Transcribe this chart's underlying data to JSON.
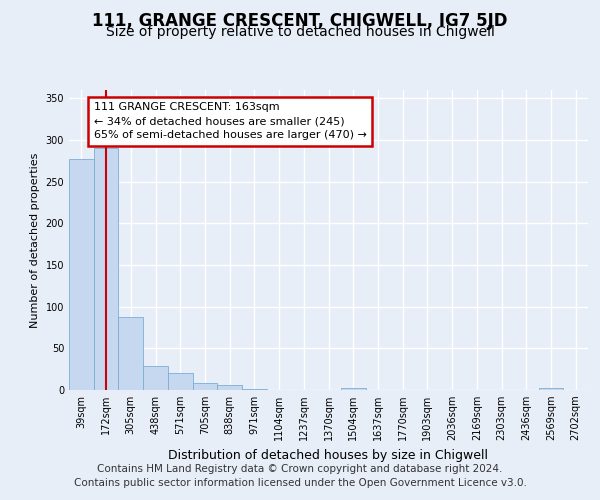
{
  "title": "111, GRANGE CRESCENT, CHIGWELL, IG7 5JD",
  "subtitle": "Size of property relative to detached houses in Chigwell",
  "xlabel": "Distribution of detached houses by size in Chigwell",
  "ylabel": "Number of detached properties",
  "categories": [
    "39sqm",
    "172sqm",
    "305sqm",
    "438sqm",
    "571sqm",
    "705sqm",
    "838sqm",
    "971sqm",
    "1104sqm",
    "1237sqm",
    "1370sqm",
    "1504sqm",
    "1637sqm",
    "1770sqm",
    "1903sqm",
    "2036sqm",
    "2169sqm",
    "2303sqm",
    "2436sqm",
    "2569sqm",
    "2702sqm"
  ],
  "values": [
    277,
    291,
    88,
    29,
    20,
    9,
    6,
    1,
    0,
    0,
    0,
    3,
    0,
    0,
    0,
    0,
    0,
    0,
    0,
    3,
    0
  ],
  "bar_color": "#c5d8ef",
  "bar_edgecolor": "#7aaed4",
  "property_line_bin": 1,
  "property_line_color": "#cc0000",
  "annotation_line1": "111 GRANGE CRESCENT: 163sqm",
  "annotation_line2": "← 34% of detached houses are smaller (245)",
  "annotation_line3": "65% of semi-detached houses are larger (470) →",
  "annotation_box_edgecolor": "#cc0000",
  "ylim": [
    0,
    360
  ],
  "yticks": [
    0,
    50,
    100,
    150,
    200,
    250,
    300,
    350
  ],
  "background_color": "#e8eef8",
  "grid_color": "#ffffff",
  "title_fontsize": 12,
  "subtitle_fontsize": 10,
  "ylabel_fontsize": 8,
  "xlabel_fontsize": 9,
  "tick_fontsize": 7,
  "footer": "Contains HM Land Registry data © Crown copyright and database right 2024.\nContains public sector information licensed under the Open Government Licence v3.0.",
  "footer_fontsize": 7.5
}
